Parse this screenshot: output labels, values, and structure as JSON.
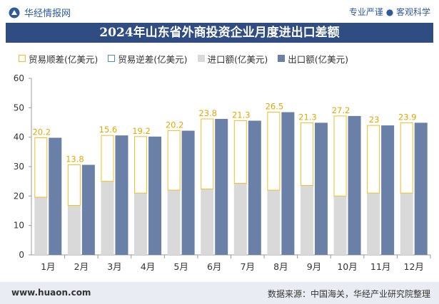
{
  "header": {
    "brand": "华经情报网",
    "slogan": "专业严谨 ● 客观科学"
  },
  "chart_data": {
    "type": "bar",
    "title": "2024年山东省外商投资企业月度进出口差额",
    "categories": [
      "1月",
      "2月",
      "3月",
      "4月",
      "5月",
      "6月",
      "7月",
      "8月",
      "9月",
      "10月",
      "11月",
      "12月"
    ],
    "series": [
      {
        "name": "贸易顺差(亿美元)",
        "values": [
          20.2,
          13.8,
          15.6,
          19.2,
          20.2,
          23.8,
          21.3,
          26.5,
          21.3,
          27.2,
          23,
          23.9
        ],
        "color": "#f2bd26"
      },
      {
        "name": "贸易逆差(亿美元)",
        "values": [
          0,
          0,
          0,
          0,
          0,
          0,
          0,
          0,
          0,
          0,
          0,
          0
        ],
        "color": "#4a8ec9"
      },
      {
        "name": "进口额(亿美元)",
        "values": [
          19.6,
          16.8,
          25,
          21,
          22,
          22.4,
          24.3,
          22,
          23.6,
          20,
          21,
          21
        ],
        "color": "#d9d9d9"
      },
      {
        "name": "出口额(亿美元)",
        "values": [
          39.8,
          30.6,
          40.6,
          40.2,
          42.2,
          46.2,
          45.6,
          48.5,
          44.9,
          47.2,
          44,
          44.9
        ],
        "color": "#6a80a6"
      }
    ],
    "data_labels": [
      "20.2",
      "13.8",
      "15.6",
      "19.2",
      "20.2",
      "23.8",
      "21.3",
      "26.5",
      "21.3",
      "27.2",
      "23",
      "23.9"
    ],
    "ylim": [
      0,
      60
    ],
    "yticks": [
      "0",
      "10",
      "20",
      "30",
      "40",
      "50",
      "60"
    ],
    "grid": false,
    "legend": "top-left"
  },
  "footer": {
    "url": "www.huaon.com",
    "source": "数据来源：中国海关，华经产业研究院整理"
  }
}
